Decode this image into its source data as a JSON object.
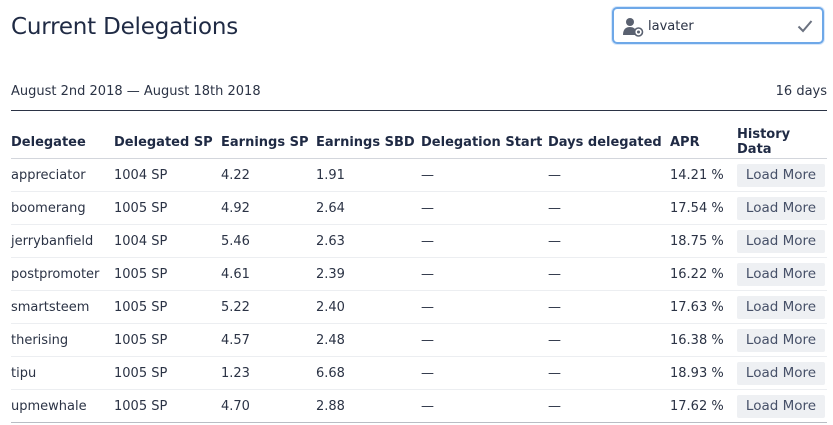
{
  "page": {
    "title": "Current Delegations"
  },
  "user_search": {
    "value": "lavater",
    "user_icon": "user-at-icon",
    "confirm_icon": "check-icon"
  },
  "summary": {
    "date_range": "August 2nd 2018 — August 18th 2018",
    "days": "16 days"
  },
  "table": {
    "headers": [
      "Delegatee",
      "Delegated SP",
      "Earnings SP",
      "Earnings SBD",
      "Delegation Start",
      "Days delegated",
      "APR",
      "History Data"
    ],
    "rows": [
      {
        "delegatee": "appreciator",
        "sp": "1004 SP",
        "earn_sp": "4.22",
        "earn_sbd": "1.91",
        "start": "—",
        "days": "—",
        "apr": "14.21 %",
        "action": "Load More"
      },
      {
        "delegatee": "boomerang",
        "sp": "1005 SP",
        "earn_sp": "4.92",
        "earn_sbd": "2.64",
        "start": "—",
        "days": "—",
        "apr": "17.54 %",
        "action": "Load More"
      },
      {
        "delegatee": "jerrybanfield",
        "sp": "1004 SP",
        "earn_sp": "5.46",
        "earn_sbd": "2.63",
        "start": "—",
        "days": "—",
        "apr": "18.75 %",
        "action": "Load More"
      },
      {
        "delegatee": "postpromoter",
        "sp": "1005 SP",
        "earn_sp": "4.61",
        "earn_sbd": "2.39",
        "start": "—",
        "days": "—",
        "apr": "16.22 %",
        "action": "Load More"
      },
      {
        "delegatee": "smartsteem",
        "sp": "1005 SP",
        "earn_sp": "5.22",
        "earn_sbd": "2.40",
        "start": "—",
        "days": "—",
        "apr": "17.63 %",
        "action": "Load More"
      },
      {
        "delegatee": "therising",
        "sp": "1005 SP",
        "earn_sp": "4.57",
        "earn_sbd": "2.48",
        "start": "—",
        "days": "—",
        "apr": "16.38 %",
        "action": "Load More"
      },
      {
        "delegatee": "tipu",
        "sp": "1005 SP",
        "earn_sp": "1.23",
        "earn_sbd": "6.68",
        "start": "—",
        "days": "—",
        "apr": "18.93 %",
        "action": "Load More"
      },
      {
        "delegatee": "upmewhale",
        "sp": "1005 SP",
        "earn_sp": "4.70",
        "earn_sbd": "2.88",
        "start": "—",
        "days": "—",
        "apr": "17.62 %",
        "action": "Load More"
      }
    ]
  }
}
